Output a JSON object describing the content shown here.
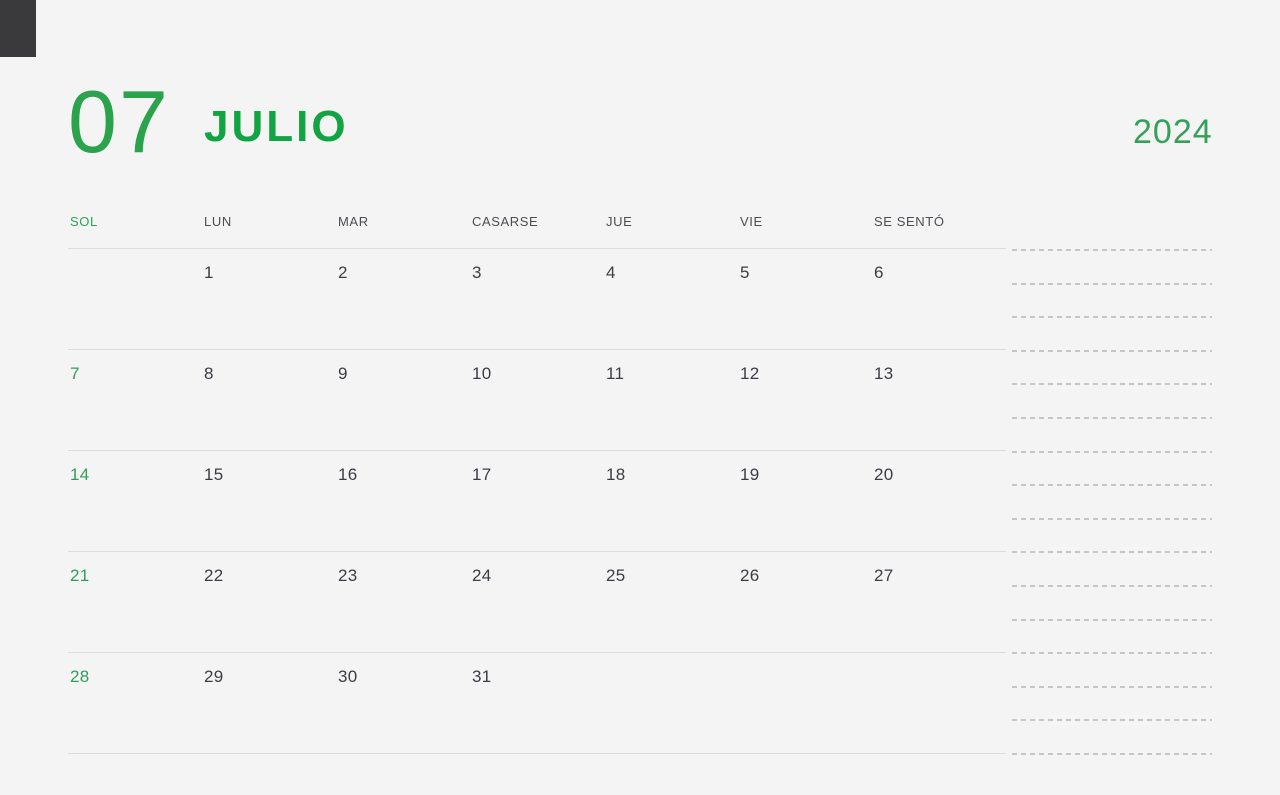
{
  "page": {
    "title": "Calendario mensual Julio 2024",
    "background": "#f5f4f5"
  },
  "colors": {
    "month_name_green": "#12a342",
    "month_number_green": "#2aa34c",
    "year_green": "#35a057",
    "date_green": "#2f9e57",
    "text_dark": "#3c3c44",
    "header_text": "#4c4c52",
    "grid_line": "#dddbdd",
    "dash_line": "#c7c5c7",
    "corner_square": "#3a3a3c"
  },
  "header": {
    "month_number": "07",
    "month_name": "JULIO",
    "year": "2024"
  },
  "calendar": {
    "day_headers": [
      "SOL",
      "LUN",
      "MAR",
      "CASARSE",
      "JUE",
      "VIE",
      "SE SENTÓ"
    ],
    "weeks": [
      [
        "",
        "1",
        "2",
        "3",
        "4",
        "5",
        "6"
      ],
      [
        "7",
        "8",
        "9",
        "10",
        "11",
        "12",
        "13"
      ],
      [
        "14",
        "15",
        "16",
        "17",
        "18",
        "19",
        "20"
      ],
      [
        "21",
        "22",
        "23",
        "24",
        "25",
        "26",
        "27"
      ],
      [
        "28",
        "29",
        "30",
        "31",
        "",
        "",
        ""
      ]
    ]
  },
  "notes": {
    "line_count": 16
  }
}
